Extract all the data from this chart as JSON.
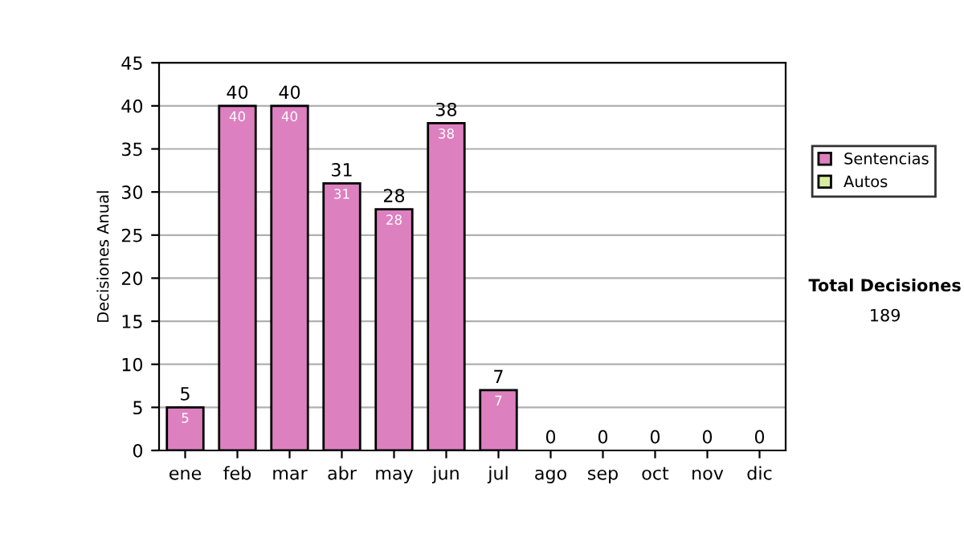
{
  "chart_data": {
    "type": "bar",
    "stacked": true,
    "ylabel": "Decisiones Anual",
    "categories": [
      "ene",
      "feb",
      "mar",
      "abr",
      "may",
      "jun",
      "jul",
      "ago",
      "sep",
      "oct",
      "nov",
      "dic"
    ],
    "series": [
      {
        "name": "Sentencias",
        "color": "#dd80c0",
        "values": [
          5,
          40,
          40,
          31,
          28,
          38,
          7,
          0,
          0,
          0,
          0,
          0
        ],
        "value_labels": [
          "5",
          "40",
          "40",
          "31",
          "28",
          "38",
          "7",
          null,
          null,
          null,
          null,
          null
        ]
      },
      {
        "name": "Autos",
        "color": "#d8eca0",
        "values": [
          0,
          0,
          0,
          0,
          0,
          0,
          0,
          0,
          0,
          0,
          0,
          0
        ]
      }
    ],
    "totals": [
      "5",
      "40",
      "40",
      "31",
      "28",
      "38",
      "7",
      "0",
      "0",
      "0",
      "0",
      "0"
    ],
    "ylim": [
      0,
      45
    ],
    "yticks": [
      0,
      5,
      10,
      15,
      20,
      25,
      30,
      35,
      40,
      45
    ],
    "grid": "y",
    "legend": "right",
    "annotations": [
      "Total Decisiones",
      "189"
    ]
  }
}
